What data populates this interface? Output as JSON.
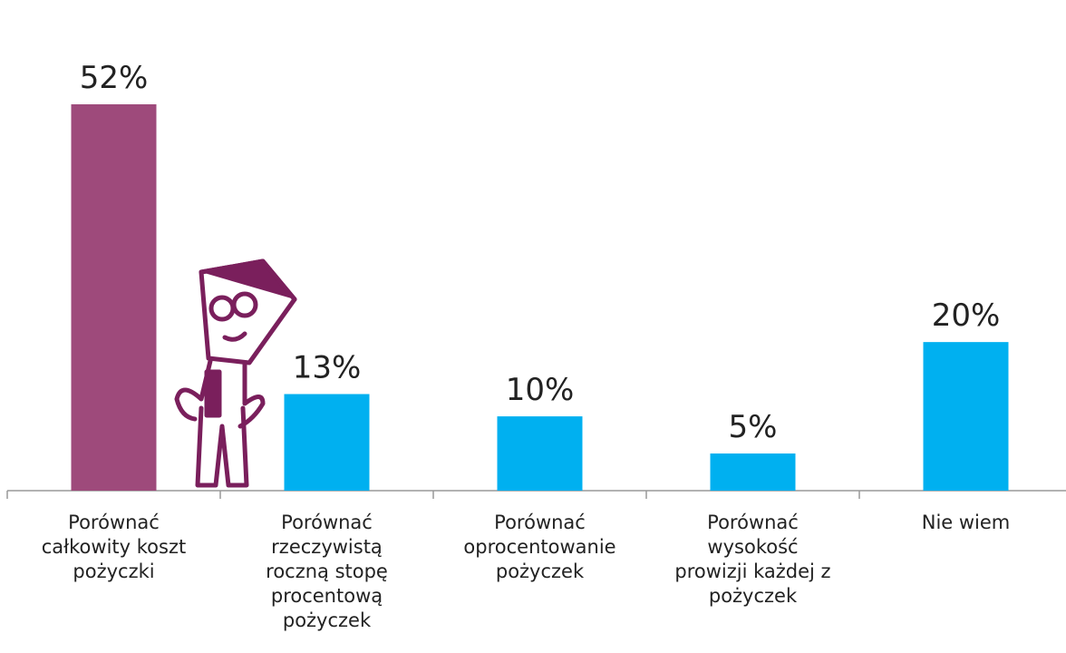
{
  "chart_data": {
    "type": "bar",
    "categories": [
      "Porównać\ncałkowity koszt\npożyczki",
      "Porównać\nrzeczywistą\nroczną stopę\nprocentową\npożyczek",
      "Porównać\noprocentowanie\npożyczek",
      "Porównać\nwysokość\nprowizji każdej z\npożyczek",
      "Nie wiem"
    ],
    "values": [
      52,
      13,
      10,
      5,
      20
    ],
    "value_labels": [
      "52%",
      "13%",
      "10%",
      "5%",
      "20%"
    ],
    "colors": [
      "#9e4a7b",
      "#00b0f0",
      "#00b0f0",
      "#00b0f0",
      "#00b0f0"
    ]
  }
}
